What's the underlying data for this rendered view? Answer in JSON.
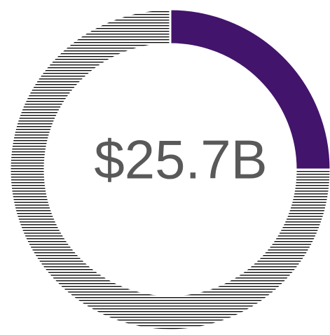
{
  "chart_data": {
    "type": "donut",
    "categories": [
      null,
      null
    ],
    "values": [
      25,
      75
    ],
    "colors": [
      "#43146b",
      "#000000"
    ],
    "hatch": [
      false,
      true
    ],
    "center_label": "$25.7B"
  }
}
